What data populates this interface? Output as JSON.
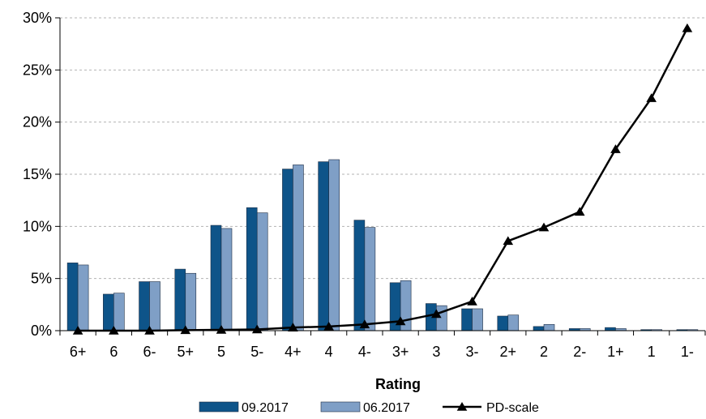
{
  "chart_data": {
    "type": "bar",
    "categories": [
      "6+",
      "6",
      "6-",
      "5+",
      "5",
      "5-",
      "4+",
      "4",
      "4-",
      "3+",
      "3",
      "3-",
      "2+",
      "2",
      "2-",
      "1+",
      "1",
      "1-"
    ],
    "series": [
      {
        "name": "09.2017",
        "kind": "bar",
        "color": "#0E5489",
        "values": [
          6.5,
          3.5,
          4.7,
          5.9,
          10.1,
          11.8,
          15.5,
          16.2,
          10.6,
          4.6,
          2.6,
          2.1,
          1.4,
          0.4,
          0.2,
          0.3,
          0.1,
          0.1
        ]
      },
      {
        "name": "06.2017",
        "kind": "bar",
        "color": "#7F9FC6",
        "values": [
          6.3,
          3.6,
          4.7,
          5.5,
          9.8,
          11.3,
          15.9,
          16.4,
          9.9,
          4.8,
          2.4,
          2.1,
          1.5,
          0.6,
          0.2,
          0.2,
          0.1,
          0.1
        ]
      },
      {
        "name": "PD-scale",
        "kind": "line",
        "color": "#000000",
        "marker": "triangle",
        "values": [
          0.0,
          0.0,
          0.0,
          0.05,
          0.08,
          0.12,
          0.3,
          0.4,
          0.6,
          0.9,
          1.6,
          2.8,
          8.6,
          9.9,
          11.4,
          17.4,
          22.3,
          29.0
        ]
      }
    ],
    "xlabel": "Rating",
    "ylabel": "",
    "ylim": [
      0,
      30
    ],
    "yticks": [
      0,
      5,
      10,
      15,
      20,
      25,
      30
    ],
    "ytick_labels": [
      "0%",
      "5%",
      "10%",
      "15%",
      "20%",
      "25%",
      "30%"
    ],
    "grid": "horizontal dashed",
    "legend_position": "bottom"
  }
}
